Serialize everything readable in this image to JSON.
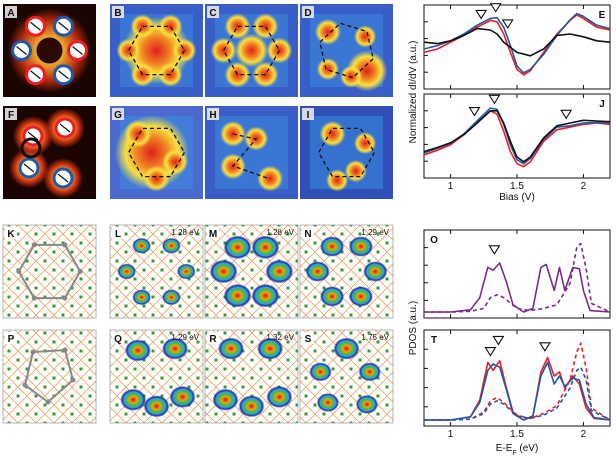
{
  "panel_letters": [
    "A",
    "B",
    "C",
    "D",
    "E",
    "F",
    "G",
    "H",
    "I",
    "J",
    "K",
    "L",
    "M",
    "N",
    "O",
    "P",
    "Q",
    "R",
    "S",
    "T"
  ],
  "energy_labels": {
    "L": "1.28 eV",
    "M": "1.28 eV",
    "N": "1.29 eV",
    "Q": "1.29 eV",
    "R": "1.32 eV",
    "S": "1.75 eV"
  },
  "colors": {
    "red": "#ee1c25",
    "blue": "#1f5aa8",
    "black": "#111111",
    "purple": "#7b2a8c",
    "bond_orange": "#e0a060",
    "bond_green": "#3a9a3a"
  },
  "chart_data": [
    {
      "type": "line",
      "panel": "E",
      "ylabel": "Normalized dI/dV (a.u.)",
      "xlim": [
        0.8,
        2.2
      ],
      "ticks": [
        1,
        1.5,
        2
      ],
      "series": [
        {
          "name": "red",
          "color": "#ee1c25",
          "x": [
            0.8,
            0.9,
            1.0,
            1.1,
            1.2,
            1.3,
            1.35,
            1.4,
            1.45,
            1.5,
            1.55,
            1.6,
            1.7,
            1.8,
            1.9,
            1.95,
            2.0,
            2.1,
            2.2
          ],
          "y": [
            0.45,
            0.5,
            0.6,
            0.7,
            0.82,
            0.92,
            0.9,
            0.72,
            0.45,
            0.2,
            0.12,
            0.18,
            0.45,
            0.72,
            0.92,
            1.0,
            0.95,
            0.82,
            0.78
          ]
        },
        {
          "name": "blue",
          "color": "#1f5aa8",
          "x": [
            0.8,
            0.9,
            1.0,
            1.1,
            1.2,
            1.3,
            1.35,
            1.4,
            1.45,
            1.5,
            1.55,
            1.6,
            1.7,
            1.8,
            1.9,
            1.95,
            2.0,
            2.1,
            2.2
          ],
          "y": [
            0.5,
            0.55,
            0.62,
            0.72,
            0.85,
            0.95,
            0.96,
            0.82,
            0.55,
            0.25,
            0.15,
            0.2,
            0.42,
            0.7,
            0.93,
            1.02,
            0.98,
            0.85,
            0.8
          ]
        },
        {
          "name": "black",
          "color": "#111111",
          "x": [
            0.8,
            0.9,
            1.0,
            1.1,
            1.2,
            1.3,
            1.35,
            1.4,
            1.5,
            1.6,
            1.7,
            1.8,
            1.9,
            2.0,
            2.1,
            2.2
          ],
          "y": [
            0.6,
            0.58,
            0.62,
            0.7,
            0.8,
            0.78,
            0.72,
            0.6,
            0.45,
            0.4,
            0.5,
            0.7,
            0.72,
            0.68,
            0.62,
            0.6
          ]
        }
      ],
      "markers": [
        {
          "x": 1.23,
          "y": 0.92
        },
        {
          "x": 1.34,
          "y": 1.02
        },
        {
          "x": 1.43,
          "y": 0.78
        }
      ]
    },
    {
      "type": "line",
      "panel": "J",
      "xlabel": "Bias (V)",
      "xlim": [
        0.8,
        2.2
      ],
      "ticks": [
        1,
        1.5,
        2
      ],
      "series": [
        {
          "name": "red",
          "color": "#ee1c25",
          "x": [
            0.8,
            0.9,
            1.0,
            1.1,
            1.2,
            1.3,
            1.35,
            1.4,
            1.45,
            1.5,
            1.55,
            1.6,
            1.7,
            1.8,
            1.9,
            2.0,
            2.1,
            2.2
          ],
          "y": [
            0.25,
            0.32,
            0.4,
            0.55,
            0.72,
            0.9,
            0.85,
            0.6,
            0.3,
            0.12,
            0.08,
            0.15,
            0.45,
            0.62,
            0.66,
            0.7,
            0.72,
            0.7
          ]
        },
        {
          "name": "blue",
          "color": "#1f5aa8",
          "x": [
            0.8,
            0.9,
            1.0,
            1.1,
            1.2,
            1.3,
            1.35,
            1.4,
            1.45,
            1.5,
            1.55,
            1.6,
            1.7,
            1.8,
            1.9,
            2.0,
            2.1,
            2.2
          ],
          "y": [
            0.28,
            0.35,
            0.42,
            0.56,
            0.75,
            0.94,
            0.92,
            0.7,
            0.4,
            0.18,
            0.12,
            0.2,
            0.48,
            0.66,
            0.68,
            0.72,
            0.73,
            0.72
          ]
        },
        {
          "name": "black",
          "color": "#111111",
          "x": [
            0.8,
            0.9,
            1.0,
            1.1,
            1.2,
            1.3,
            1.35,
            1.4,
            1.45,
            1.5,
            1.55,
            1.6,
            1.7,
            1.8,
            1.9,
            2.0,
            2.1,
            2.2
          ],
          "y": [
            0.3,
            0.36,
            0.43,
            0.55,
            0.72,
            0.9,
            0.9,
            0.72,
            0.45,
            0.22,
            0.15,
            0.22,
            0.5,
            0.68,
            0.72,
            0.76,
            0.75,
            0.74
          ]
        }
      ],
      "markers": [
        {
          "x": 1.18,
          "y": 0.8
        },
        {
          "x": 1.33,
          "y": 0.98
        },
        {
          "x": 1.87,
          "y": 0.76
        }
      ]
    },
    {
      "type": "line",
      "panel": "O",
      "xlim": [
        0.8,
        2.2
      ],
      "ticks": [
        1,
        1.5,
        2
      ],
      "series": [
        {
          "name": "purple-solid",
          "color": "#7b2a8c",
          "dash": false,
          "x": [
            0.8,
            1.0,
            1.15,
            1.22,
            1.28,
            1.32,
            1.37,
            1.42,
            1.47,
            1.55,
            1.62,
            1.68,
            1.72,
            1.78,
            1.82,
            1.86,
            1.92,
            1.97,
            2.0,
            2.05,
            2.2
          ],
          "y": [
            0.0,
            0.0,
            0.03,
            0.2,
            0.62,
            0.58,
            0.68,
            0.42,
            0.1,
            0.0,
            0.05,
            0.62,
            0.66,
            0.3,
            0.62,
            0.3,
            0.62,
            0.6,
            0.3,
            0.02,
            0.0
          ]
        },
        {
          "name": "purple-dashed",
          "color": "#7b2a8c",
          "dash": true,
          "x": [
            0.8,
            1.0,
            1.15,
            1.25,
            1.3,
            1.35,
            1.4,
            1.5,
            1.6,
            1.7,
            1.8,
            1.9,
            1.95,
            1.98,
            2.02,
            2.06,
            2.2
          ],
          "y": [
            0.0,
            0.0,
            0.01,
            0.05,
            0.2,
            0.24,
            0.2,
            0.05,
            0.02,
            0.05,
            0.1,
            0.4,
            0.9,
            0.95,
            0.6,
            0.12,
            0.0
          ]
        }
      ],
      "markers": [
        {
          "x": 1.33,
          "y": 0.78
        }
      ]
    },
    {
      "type": "line",
      "panel": "T",
      "xlabel": "E-E_F (eV)",
      "ylabel": "PDOS (a.u.)",
      "xlim": [
        0.8,
        2.2
      ],
      "ticks": [
        1,
        1.5,
        2
      ],
      "series": [
        {
          "name": "red-solid",
          "color": "#ee1c25",
          "dash": false,
          "x": [
            0.8,
            1.0,
            1.15,
            1.22,
            1.28,
            1.32,
            1.37,
            1.42,
            1.47,
            1.55,
            1.62,
            1.68,
            1.73,
            1.78,
            1.82,
            1.86,
            1.92,
            1.97,
            2.02,
            2.08,
            2.2
          ],
          "y": [
            0.0,
            0.0,
            0.04,
            0.25,
            0.72,
            0.62,
            0.74,
            0.4,
            0.1,
            0.0,
            0.05,
            0.6,
            0.78,
            0.55,
            0.6,
            0.4,
            0.55,
            0.45,
            0.15,
            0.02,
            0.0
          ]
        },
        {
          "name": "blue-solid",
          "color": "#1f5aa8",
          "dash": false,
          "x": [
            0.8,
            1.0,
            1.15,
            1.22,
            1.28,
            1.32,
            1.37,
            1.42,
            1.47,
            1.55,
            1.62,
            1.68,
            1.73,
            1.78,
            1.82,
            1.86,
            1.92,
            1.97,
            2.02,
            2.08,
            2.2
          ],
          "y": [
            0.0,
            0.0,
            0.04,
            0.22,
            0.62,
            0.7,
            0.66,
            0.38,
            0.08,
            0.0,
            0.05,
            0.55,
            0.72,
            0.45,
            0.55,
            0.42,
            0.52,
            0.5,
            0.2,
            0.03,
            0.0
          ]
        },
        {
          "name": "red-dashed",
          "color": "#ee1c25",
          "dash": true,
          "x": [
            0.8,
            1.0,
            1.15,
            1.25,
            1.3,
            1.35,
            1.4,
            1.5,
            1.6,
            1.7,
            1.8,
            1.9,
            1.95,
            1.98,
            2.02,
            2.06,
            2.2
          ],
          "y": [
            0.0,
            0.0,
            0.01,
            0.1,
            0.24,
            0.28,
            0.22,
            0.06,
            0.02,
            0.08,
            0.18,
            0.5,
            0.85,
            0.96,
            0.65,
            0.15,
            0.0
          ]
        },
        {
          "name": "blue-dashed",
          "color": "#1f5aa8",
          "dash": true,
          "x": [
            0.8,
            1.0,
            1.15,
            1.25,
            1.3,
            1.35,
            1.4,
            1.5,
            1.6,
            1.7,
            1.8,
            1.9,
            1.95,
            1.98,
            2.02,
            2.06,
            2.2
          ],
          "y": [
            0.0,
            0.0,
            0.01,
            0.08,
            0.2,
            0.24,
            0.2,
            0.05,
            0.02,
            0.06,
            0.15,
            0.4,
            0.62,
            0.66,
            0.5,
            0.12,
            0.0
          ]
        }
      ],
      "markers": [
        {
          "x": 1.3,
          "y": 0.78
        },
        {
          "x": 1.36,
          "y": 0.92
        },
        {
          "x": 1.71,
          "y": 0.84
        }
      ]
    }
  ]
}
